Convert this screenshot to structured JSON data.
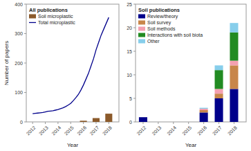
{
  "chart_data": [
    {
      "type": "bar",
      "title": "All publications",
      "xlabel": "Year",
      "ylabel": "Number of papers",
      "series": [
        {
          "name": "Soil microplastic",
          "type": "bar",
          "color": "#8B5A2B",
          "x": [
            2016,
            2017,
            2018
          ],
          "values": [
            4,
            13,
            28
          ]
        },
        {
          "name": "Total microplastic",
          "type": "line",
          "color": "#00008B",
          "x": [
            2012,
            2012.2,
            2012.4,
            2012.6,
            2012.8,
            2013,
            2013.2,
            2013.4,
            2013.6,
            2013.8,
            2014,
            2014.2,
            2014.4,
            2014.6,
            2014.8,
            2015,
            2015.2,
            2015.4,
            2015.6,
            2015.8,
            2016,
            2016.2,
            2016.4,
            2016.6,
            2016.8,
            2017,
            2017.2,
            2017.4,
            2017.6,
            2017.8,
            2018
          ],
          "values": [
            28,
            29,
            30,
            31,
            32,
            34,
            36,
            37,
            38,
            40,
            42,
            45,
            48,
            52,
            57,
            63,
            72,
            82,
            93,
            108,
            125,
            145,
            165,
            190,
            215,
            245,
            270,
            295,
            315,
            335,
            355
          ]
        }
      ],
      "xlim": [
        2011.5,
        2018.8
      ],
      "xticks": [
        2012,
        2013,
        2014,
        2015,
        2016,
        2017,
        2018
      ],
      "ylim": [
        0,
        400
      ],
      "yticks": [
        0,
        100,
        200,
        300,
        400
      ],
      "legend": "upper left"
    },
    {
      "type": "bar",
      "title": "Soil publications",
      "xlabel": "Year",
      "stacked": true,
      "x": [
        2012,
        2013,
        2014,
        2015,
        2016,
        2017,
        2018
      ],
      "series": [
        {
          "name": "Review/theory",
          "color": "#00008B",
          "values": [
            1,
            0,
            0,
            0,
            2,
            5,
            7
          ]
        },
        {
          "name": "Soil survey",
          "color": "#C8864A",
          "values": [
            0,
            0,
            0,
            0,
            0.5,
            1,
            5
          ]
        },
        {
          "name": "Soil methods",
          "color": "#F4A0B0",
          "values": [
            0,
            0,
            0,
            0,
            0.3,
            1,
            1
          ]
        },
        {
          "name": "Interactions with soil biota",
          "color": "#228B22",
          "values": [
            0,
            0,
            0,
            0,
            0,
            4,
            6
          ]
        },
        {
          "name": "Other",
          "color": "#87CEEB",
          "values": [
            0,
            0,
            0,
            0,
            0.2,
            1,
            2
          ]
        }
      ],
      "xlim": [
        2011.5,
        2018.8
      ],
      "xticks": [
        2012,
        2013,
        2014,
        2015,
        2016,
        2017,
        2018
      ],
      "ylim": [
        0,
        25
      ],
      "yticks": [
        0,
        5,
        10,
        15,
        20,
        25
      ],
      "legend": "upper left"
    }
  ]
}
